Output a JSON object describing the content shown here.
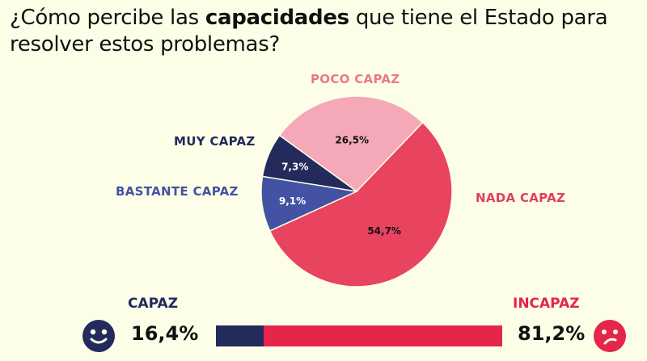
{
  "title": {
    "pre": "¿Cómo percibe las ",
    "bold": "capacidades",
    "post": " que tiene el Estado para",
    "line2": "resolver estos problemas?"
  },
  "chart_data": {
    "type": "pie",
    "title": "¿Cómo percibe las capacidades que tiene el Estado para resolver estos problemas?",
    "slices": [
      {
        "label": "POCO CAPAZ",
        "value": 26.5,
        "display": "26,5%",
        "color": "#f5a9b8"
      },
      {
        "label": "NADA CAPAZ",
        "value": 54.7,
        "display": "54,7%",
        "color": "#e8435f"
      },
      {
        "label": "BASTANTE CAPAZ",
        "value": 9.1,
        "display": "9,1%",
        "color": "#4352a3"
      },
      {
        "label": "MUY CAPAZ",
        "value": 7.3,
        "display": "7,3%",
        "color": "#232a5c"
      }
    ],
    "summary": {
      "capaz": {
        "label": "CAPAZ",
        "value": 16.4,
        "display": "16,4%",
        "color": "#232a5c",
        "icon": "smiley-face-icon"
      },
      "incapaz": {
        "label": "INCAPAZ",
        "value": 81.2,
        "display": "81,2%",
        "color": "#e5254a",
        "icon": "sad-face-icon"
      }
    }
  }
}
